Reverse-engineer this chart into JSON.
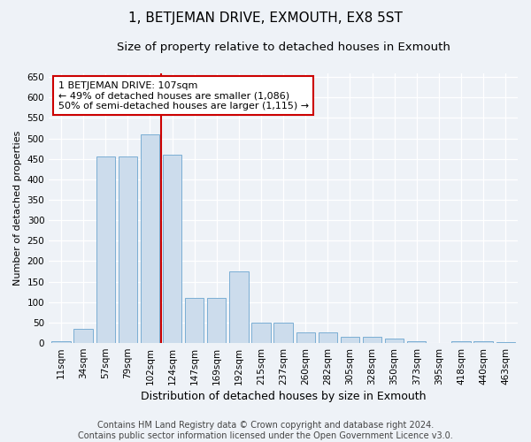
{
  "title": "1, BETJEMAN DRIVE, EXMOUTH, EX8 5ST",
  "subtitle": "Size of property relative to detached houses in Exmouth",
  "xlabel": "Distribution of detached houses by size in Exmouth",
  "ylabel": "Number of detached properties",
  "categories": [
    "11sqm",
    "34sqm",
    "57sqm",
    "79sqm",
    "102sqm",
    "124sqm",
    "147sqm",
    "169sqm",
    "192sqm",
    "215sqm",
    "237sqm",
    "260sqm",
    "282sqm",
    "305sqm",
    "328sqm",
    "350sqm",
    "373sqm",
    "395sqm",
    "418sqm",
    "440sqm",
    "463sqm"
  ],
  "values": [
    5,
    35,
    455,
    455,
    510,
    460,
    110,
    110,
    175,
    50,
    50,
    25,
    25,
    15,
    15,
    10,
    5,
    0,
    5,
    5,
    3
  ],
  "bar_color": "#ccdcec",
  "bar_edge_color": "#7aaed4",
  "vline_x": 4.5,
  "vline_color": "#cc0000",
  "ylim": [
    0,
    660
  ],
  "yticks": [
    0,
    50,
    100,
    150,
    200,
    250,
    300,
    350,
    400,
    450,
    500,
    550,
    600,
    650
  ],
  "annotation_line1": "1 BETJEMAN DRIVE: 107sqm",
  "annotation_line2": "← 49% of detached houses are smaller (1,086)",
  "annotation_line3": "50% of semi-detached houses are larger (1,115) →",
  "annotation_box_facecolor": "#ffffff",
  "annotation_box_edgecolor": "#cc0000",
  "footer_line1": "Contains HM Land Registry data © Crown copyright and database right 2024.",
  "footer_line2": "Contains public sector information licensed under the Open Government Licence v3.0.",
  "background_color": "#eef2f7",
  "grid_color": "#ffffff",
  "title_fontsize": 11,
  "subtitle_fontsize": 9.5,
  "ylabel_fontsize": 8,
  "xlabel_fontsize": 9,
  "tick_fontsize": 7.5,
  "annotation_fontsize": 8,
  "footer_fontsize": 7
}
